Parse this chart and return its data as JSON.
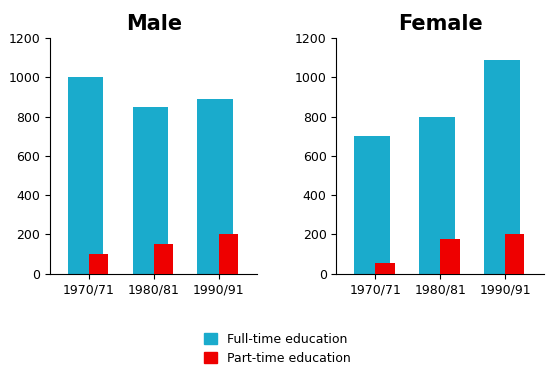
{
  "male_fulltime": [
    1000,
    850,
    890
  ],
  "male_parttime": [
    100,
    150,
    200
  ],
  "female_fulltime": [
    700,
    800,
    1090
  ],
  "female_parttime": [
    55,
    175,
    200
  ],
  "periods": [
    "1970/71",
    "1980/81",
    "1990/91"
  ],
  "male_title": "Male",
  "female_title": "Female",
  "fulltime_color": "#1AABCC",
  "parttime_color": "#EE0000",
  "ylim": [
    0,
    1200
  ],
  "yticks": [
    0,
    200,
    400,
    600,
    800,
    1000,
    1200
  ],
  "legend_labels": [
    "Full-time education",
    "Part-time education"
  ],
  "ft_bar_width": 0.55,
  "pt_bar_width": 0.3,
  "title_fontsize": 15,
  "tick_fontsize": 9,
  "legend_fontsize": 9
}
